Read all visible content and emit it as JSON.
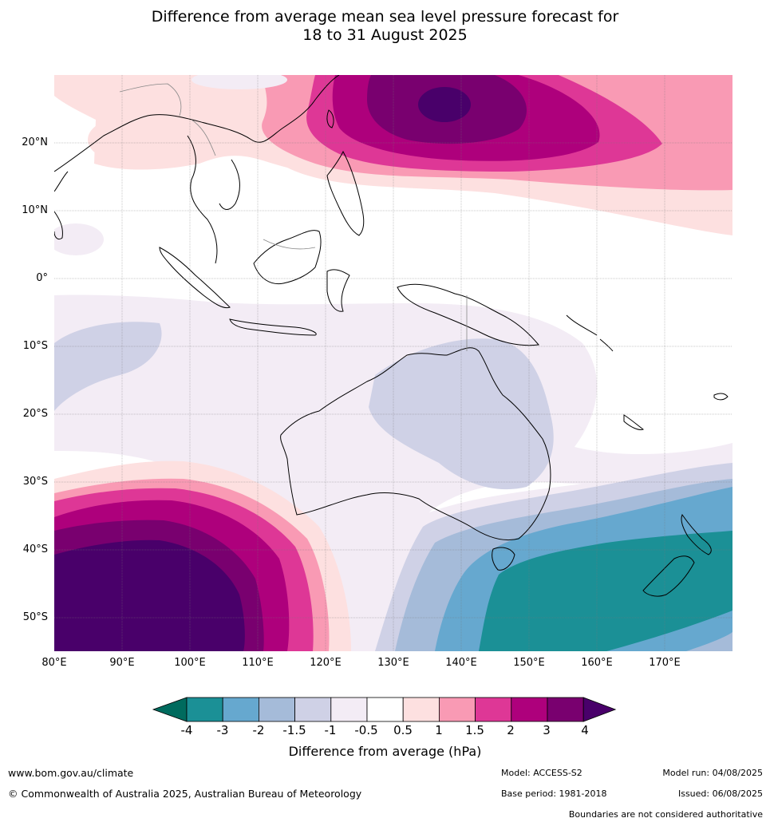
{
  "title_line1": "Difference from average mean sea level pressure forecast for",
  "title_line2": "18 to 31 August 2025",
  "lat_labels": [
    "20°N",
    "10°N",
    "0°",
    "10°S",
    "20°S",
    "30°S",
    "40°S",
    "50°S"
  ],
  "lon_labels": [
    "80°E",
    "90°E",
    "100°E",
    "110°E",
    "120°E",
    "130°E",
    "140°E",
    "150°E",
    "160°E",
    "170°E"
  ],
  "legend": {
    "title": "Difference from average (hPa)",
    "ticks": [
      "-4",
      "-3",
      "-2",
      "-1.5",
      "-1",
      "-0.5",
      "0.5",
      "1",
      "1.5",
      "2",
      "3",
      "4"
    ],
    "colors": [
      "#006b5e",
      "#1b9096",
      "#66a8cf",
      "#a5bbd9",
      "#cfd1e6",
      "#f3ecf5",
      "#ffffff",
      "#fde0e0",
      "#f99ab4",
      "#de3796",
      "#ae007c",
      "#79006f",
      "#49006a"
    ]
  },
  "footer": {
    "site": "www.bom.gov.au/climate",
    "copyright": "© Commonwealth of Australia 2025, Australian Bureau of Meteorology",
    "model": "Model: ACCESS-S2",
    "base_period": "Base period: 1981-2018",
    "model_run": "Model run: 04/08/2025",
    "issued": "Issued: 06/08/2025",
    "disclaimer": "Boundaries are not considered authoritative"
  }
}
